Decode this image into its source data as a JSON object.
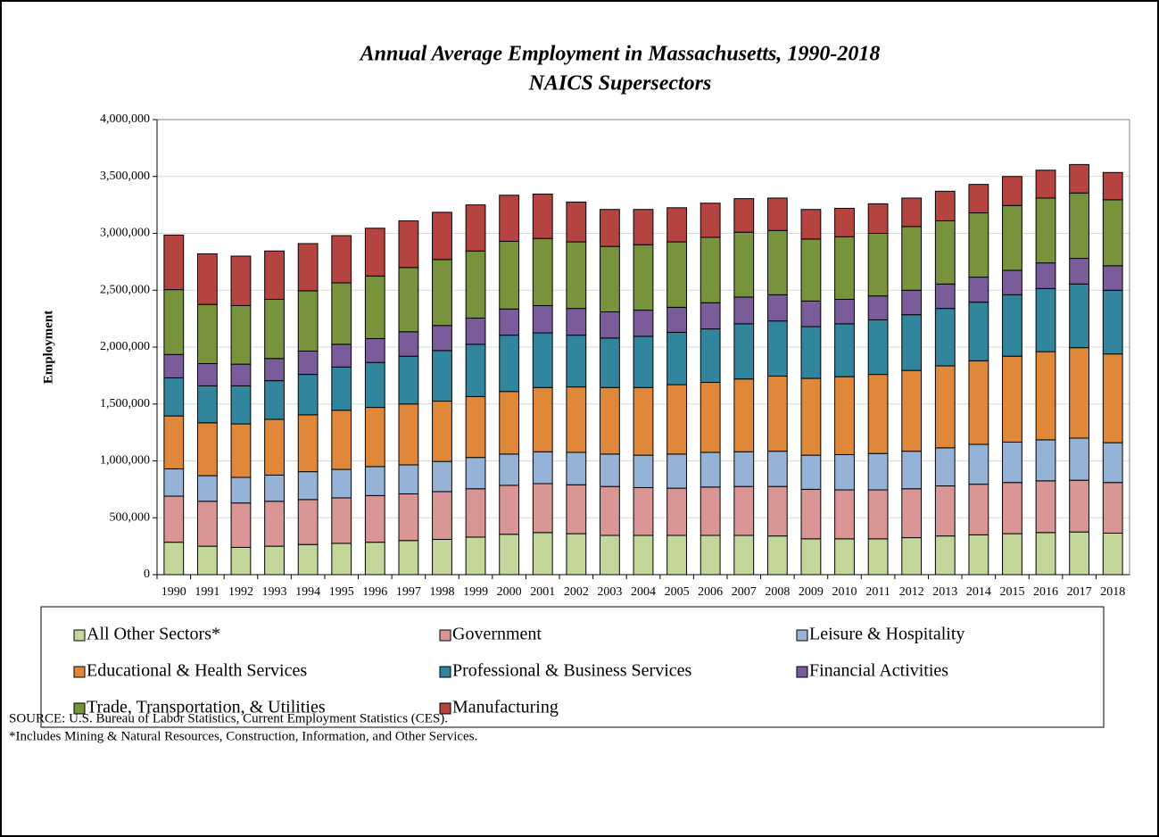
{
  "chart_data": {
    "type": "stacked_bar",
    "title": "Annual Average Employment in Massachusetts, 1990-2018",
    "subtitle": "NAICS Supersectors",
    "y_label": "Employment",
    "categories": [
      "1990",
      "1991",
      "1992",
      "1993",
      "1994",
      "1995",
      "1996",
      "1997",
      "1998",
      "1999",
      "2000",
      "2001",
      "2002",
      "2003",
      "2004",
      "2005",
      "2006",
      "2007",
      "2008",
      "2009",
      "2010",
      "2011",
      "2012",
      "2013",
      "2014",
      "2015",
      "2016",
      "2017",
      "2018"
    ],
    "series": [
      {
        "name": "All Other Sectors*",
        "color": "#c4d79b",
        "values": [
          285000,
          250000,
          240000,
          250000,
          265000,
          275000,
          285000,
          300000,
          310000,
          330000,
          355000,
          370000,
          360000,
          345000,
          345000,
          345000,
          345000,
          345000,
          340000,
          315000,
          315000,
          315000,
          325000,
          340000,
          350000,
          360000,
          370000,
          375000,
          365000
        ]
      },
      {
        "name": "Government",
        "color": "#d99694",
        "values": [
          405000,
          395000,
          390000,
          395000,
          395000,
          400000,
          410000,
          410000,
          420000,
          425000,
          430000,
          430000,
          430000,
          430000,
          420000,
          415000,
          425000,
          430000,
          435000,
          435000,
          430000,
          430000,
          430000,
          440000,
          445000,
          450000,
          455000,
          455000,
          445000
        ]
      },
      {
        "name": "Leisure & Hospitality",
        "color": "#95b3d7",
        "values": [
          240000,
          225000,
          225000,
          230000,
          245000,
          250000,
          255000,
          255000,
          265000,
          275000,
          275000,
          280000,
          285000,
          285000,
          285000,
          300000,
          305000,
          305000,
          310000,
          300000,
          310000,
          320000,
          330000,
          335000,
          350000,
          355000,
          360000,
          370000,
          350000
        ]
      },
      {
        "name": "Educational & Health Services",
        "color": "#e0883a",
        "values": [
          465000,
          465000,
          470000,
          490000,
          500000,
          520000,
          520000,
          535000,
          530000,
          535000,
          550000,
          565000,
          575000,
          585000,
          595000,
          610000,
          615000,
          640000,
          660000,
          675000,
          685000,
          695000,
          710000,
          720000,
          735000,
          755000,
          775000,
          795000,
          780000
        ]
      },
      {
        "name": "Professional & Business Services",
        "color": "#31859c",
        "values": [
          335000,
          325000,
          335000,
          340000,
          355000,
          380000,
          395000,
          420000,
          445000,
          460000,
          495000,
          480000,
          455000,
          435000,
          450000,
          460000,
          470000,
          485000,
          485000,
          455000,
          465000,
          480000,
          490000,
          505000,
          515000,
          540000,
          555000,
          560000,
          560000
        ]
      },
      {
        "name": "Financial Activities",
        "color": "#7a5c9a",
        "values": [
          205000,
          195000,
          190000,
          195000,
          205000,
          200000,
          210000,
          215000,
          220000,
          230000,
          230000,
          240000,
          235000,
          230000,
          230000,
          220000,
          230000,
          235000,
          230000,
          225000,
          215000,
          210000,
          215000,
          215000,
          220000,
          215000,
          225000,
          225000,
          215000
        ]
      },
      {
        "name": "Trade, Transportation, & Utilities",
        "color": "#77933c",
        "values": [
          570000,
          520000,
          515000,
          520000,
          530000,
          540000,
          550000,
          565000,
          580000,
          590000,
          595000,
          590000,
          585000,
          575000,
          575000,
          575000,
          575000,
          570000,
          565000,
          545000,
          550000,
          550000,
          560000,
          555000,
          565000,
          570000,
          570000,
          575000,
          580000
        ]
      },
      {
        "name": "Manufacturing",
        "color": "#b5433f",
        "values": [
          480000,
          445000,
          435000,
          425000,
          415000,
          415000,
          420000,
          410000,
          415000,
          405000,
          405000,
          390000,
          350000,
          325000,
          310000,
          300000,
          300000,
          295000,
          285000,
          260000,
          250000,
          260000,
          250000,
          260000,
          250000,
          255000,
          245000,
          250000,
          240000
        ]
      }
    ],
    "ylim": [
      0,
      4000000
    ],
    "yticks": [
      0,
      {
        "value": 500000,
        "label": "500,000"
      },
      {
        "value": 1000000,
        "label": "1,000,000"
      },
      {
        "value": 1500000,
        "label": "1,500,000"
      },
      {
        "value": 2000000,
        "label": "2,000,000"
      },
      {
        "value": 2500000,
        "label": "2,500,000"
      },
      {
        "value": 3000000,
        "label": "3,000,000"
      },
      {
        "value": 3500000,
        "label": "3,500,000"
      },
      {
        "value": 4000000,
        "label": "4,000,000"
      }
    ],
    "grid": true,
    "legend": "bottom",
    "notes": [
      "SOURCE: U.S. Bureau of Labor Statistics, Current Employment Statistics (CES).",
      "*Includes Mining & Natural Resources, Construction, Information, and Other Services."
    ]
  }
}
